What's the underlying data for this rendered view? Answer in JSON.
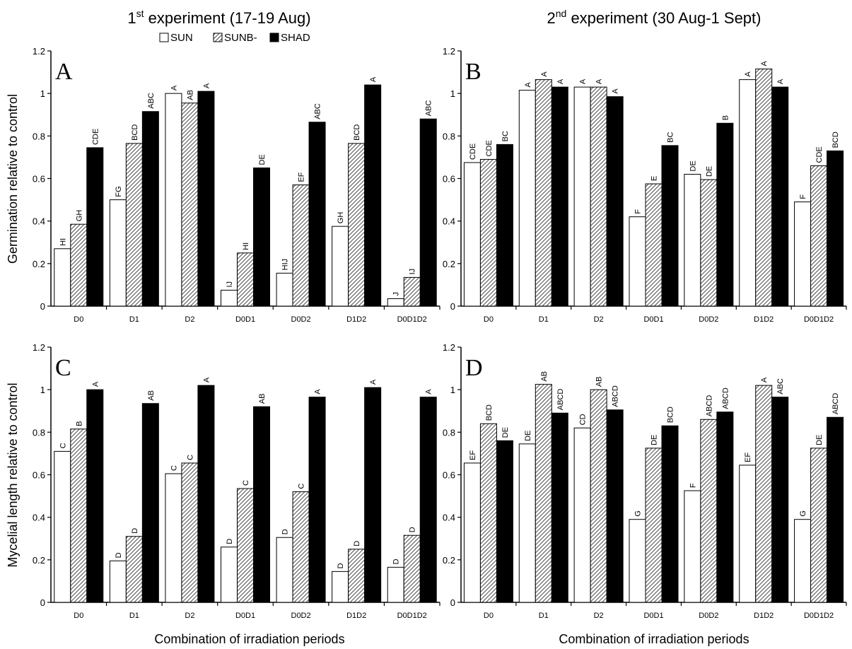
{
  "figure": {
    "exp1": {
      "sup": "st",
      "pre": "1",
      "post": " experiment (17-19 Aug)"
    },
    "exp2": {
      "sup": "nd",
      "pre": "2",
      "post": " experiment (30 Aug-1 Sept)"
    },
    "legend": [
      "SUN",
      "SUNB-",
      "SHAD"
    ],
    "ylabel_top": "Germination relative to control",
    "ylabel_bottom": "Mycelial length relative to control",
    "xlabel": "Combination of irradiation periods",
    "colors": {
      "SUN": "#ffffff",
      "SUNB-": "#b0b0b0",
      "SHAD": "#000000"
    }
  },
  "chart_data": [
    {
      "panel": "A",
      "type": "bar",
      "categories": [
        "D0",
        "D1",
        "D2",
        "D0D1",
        "D0D2",
        "D1D2",
        "D0D1D2"
      ],
      "ylim": [
        0,
        1.2
      ],
      "yticks": [
        "0",
        "0.2",
        "0.4",
        "0.6",
        "0.8",
        "1",
        "1.2"
      ],
      "ylabel": "Germination relative to control",
      "xlabel": "",
      "series": [
        {
          "name": "SUN",
          "values": [
            0.27,
            0.5,
            1.0,
            0.075,
            0.155,
            0.375,
            0.035
          ],
          "labels": [
            "HI",
            "FG",
            "A",
            "IJ",
            "HIJ",
            "GH",
            "J"
          ]
        },
        {
          "name": "SUNB-",
          "values": [
            0.385,
            0.765,
            0.955,
            0.25,
            0.57,
            0.765,
            0.135
          ],
          "labels": [
            "GH",
            "BCD",
            "AB",
            "HI",
            "EF",
            "BCD",
            "IJ"
          ]
        },
        {
          "name": "SHAD",
          "values": [
            0.745,
            0.915,
            1.01,
            0.65,
            0.865,
            1.04,
            0.88
          ],
          "labels": [
            "CDE",
            "ABC",
            "A",
            "DE",
            "ABC",
            "A",
            "ABC"
          ]
        }
      ]
    },
    {
      "panel": "B",
      "type": "bar",
      "categories": [
        "D0",
        "D1",
        "D2",
        "D0D1",
        "D0D2",
        "D1D2",
        "D0D1D2"
      ],
      "ylim": [
        0,
        1.2
      ],
      "yticks": [
        "0",
        "0.2",
        "0.4",
        "0.6",
        "0.8",
        "1",
        "1.2"
      ],
      "ylabel": "",
      "xlabel": "",
      "series": [
        {
          "name": "SUN",
          "values": [
            0.675,
            1.015,
            1.03,
            0.42,
            0.62,
            1.065,
            0.49
          ],
          "labels": [
            "CDE",
            "A",
            "A",
            "F",
            "DE",
            "A",
            "F"
          ]
        },
        {
          "name": "SUNB-",
          "values": [
            0.69,
            1.065,
            1.03,
            0.575,
            0.595,
            1.115,
            0.66
          ],
          "labels": [
            "CDE",
            "A",
            "A",
            "E",
            "DE",
            "A",
            "CDE"
          ]
        },
        {
          "name": "SHAD",
          "values": [
            0.76,
            1.03,
            0.985,
            0.755,
            0.86,
            1.03,
            0.73
          ],
          "labels": [
            "BC",
            "A",
            "A",
            "BC",
            "B",
            "A",
            "BCD"
          ]
        }
      ]
    },
    {
      "panel": "C",
      "type": "bar",
      "categories": [
        "D0",
        "D1",
        "D2",
        "D0D1",
        "D0D2",
        "D1D2",
        "D0D1D2"
      ],
      "ylim": [
        0,
        1.2
      ],
      "yticks": [
        "0",
        "0.2",
        "0.4",
        "0.6",
        "0.8",
        "1",
        "1.2"
      ],
      "ylabel": "Mycelial length relative to control",
      "xlabel": "Combination of irradiation periods",
      "series": [
        {
          "name": "SUN",
          "values": [
            0.71,
            0.195,
            0.605,
            0.26,
            0.305,
            0.145,
            0.165
          ],
          "labels": [
            "C",
            "D",
            "C",
            "D",
            "D",
            "D",
            "D"
          ]
        },
        {
          "name": "SUNB-",
          "values": [
            0.815,
            0.31,
            0.655,
            0.535,
            0.52,
            0.25,
            0.315
          ],
          "labels": [
            "B",
            "D",
            "C",
            "C",
            "C",
            "D",
            "D"
          ]
        },
        {
          "name": "SHAD",
          "values": [
            1.0,
            0.935,
            1.02,
            0.92,
            0.965,
            1.01,
            0.965
          ],
          "labels": [
            "A",
            "AB",
            "A",
            "AB",
            "A",
            "A",
            "A"
          ]
        }
      ]
    },
    {
      "panel": "D",
      "type": "bar",
      "categories": [
        "D0",
        "D1",
        "D2",
        "D0D1",
        "D0D2",
        "D1D2",
        "D0D1D2"
      ],
      "ylim": [
        0,
        1.2
      ],
      "yticks": [
        "0",
        "0.2",
        "0.4",
        "0.6",
        "0.8",
        "1",
        "1.2"
      ],
      "ylabel": "",
      "xlabel": "Combination of irradiation periods",
      "series": [
        {
          "name": "SUN",
          "values": [
            0.655,
            0.745,
            0.82,
            0.39,
            0.525,
            0.645,
            0.39
          ],
          "labels": [
            "EF",
            "DE",
            "CD",
            "G",
            "F",
            "EF",
            "G"
          ]
        },
        {
          "name": "SUNB-",
          "values": [
            0.84,
            1.025,
            1.0,
            0.725,
            0.86,
            1.02,
            0.725
          ],
          "labels": [
            "BCD",
            "AB",
            "AB",
            "DE",
            "ABCD",
            "A",
            "DE"
          ]
        },
        {
          "name": "SHAD",
          "values": [
            0.76,
            0.89,
            0.905,
            0.83,
            0.895,
            0.965,
            0.87
          ],
          "labels": [
            "DE",
            "ABCD",
            "ABCD",
            "BCD",
            "ABCD",
            "ABC",
            "ABCD"
          ]
        }
      ]
    }
  ]
}
